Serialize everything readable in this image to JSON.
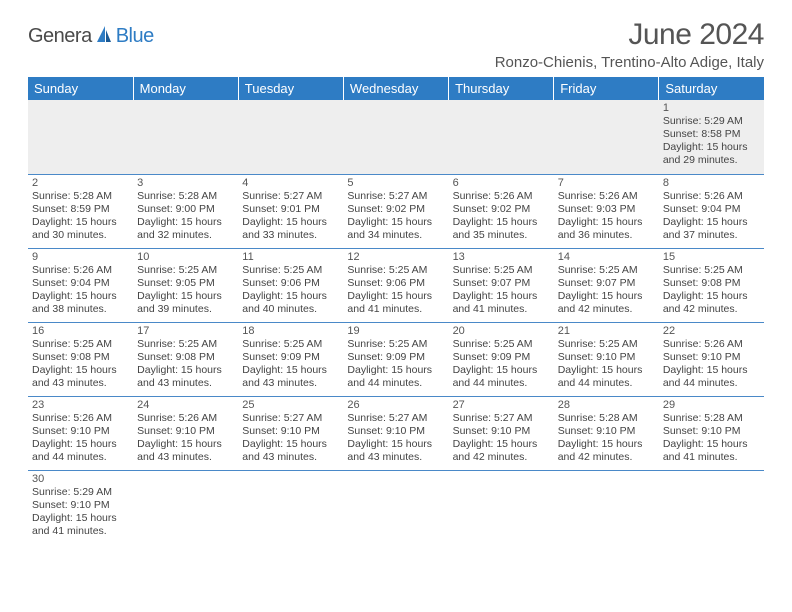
{
  "brand": {
    "part1": "Genera",
    "part2": "Blue"
  },
  "title": "June 2024",
  "location": "Ronzo-Chienis, Trentino-Alto Adige, Italy",
  "colors": {
    "header_bg": "#2e7cc4",
    "header_text": "#ffffff",
    "row_border": "#4a89c8",
    "first_row_bg": "#eeeeee",
    "text_primary": "#444444",
    "text_secondary": "#555555",
    "brand_blue": "#2e7cc4",
    "brand_gray": "#4a4a4a"
  },
  "typography": {
    "title_fontsize": 30,
    "location_fontsize": 15,
    "header_fontsize": 13,
    "daynum_fontsize": 11,
    "body_fontsize": 10.5
  },
  "weekdays": [
    "Sunday",
    "Monday",
    "Tuesday",
    "Wednesday",
    "Thursday",
    "Friday",
    "Saturday"
  ],
  "weeks": [
    [
      null,
      null,
      null,
      null,
      null,
      null,
      {
        "n": "1",
        "sunrise": "Sunrise: 5:29 AM",
        "sunset": "Sunset: 8:58 PM",
        "daylight1": "Daylight: 15 hours",
        "daylight2": "and 29 minutes."
      }
    ],
    [
      {
        "n": "2",
        "sunrise": "Sunrise: 5:28 AM",
        "sunset": "Sunset: 8:59 PM",
        "daylight1": "Daylight: 15 hours",
        "daylight2": "and 30 minutes."
      },
      {
        "n": "3",
        "sunrise": "Sunrise: 5:28 AM",
        "sunset": "Sunset: 9:00 PM",
        "daylight1": "Daylight: 15 hours",
        "daylight2": "and 32 minutes."
      },
      {
        "n": "4",
        "sunrise": "Sunrise: 5:27 AM",
        "sunset": "Sunset: 9:01 PM",
        "daylight1": "Daylight: 15 hours",
        "daylight2": "and 33 minutes."
      },
      {
        "n": "5",
        "sunrise": "Sunrise: 5:27 AM",
        "sunset": "Sunset: 9:02 PM",
        "daylight1": "Daylight: 15 hours",
        "daylight2": "and 34 minutes."
      },
      {
        "n": "6",
        "sunrise": "Sunrise: 5:26 AM",
        "sunset": "Sunset: 9:02 PM",
        "daylight1": "Daylight: 15 hours",
        "daylight2": "and 35 minutes."
      },
      {
        "n": "7",
        "sunrise": "Sunrise: 5:26 AM",
        "sunset": "Sunset: 9:03 PM",
        "daylight1": "Daylight: 15 hours",
        "daylight2": "and 36 minutes."
      },
      {
        "n": "8",
        "sunrise": "Sunrise: 5:26 AM",
        "sunset": "Sunset: 9:04 PM",
        "daylight1": "Daylight: 15 hours",
        "daylight2": "and 37 minutes."
      }
    ],
    [
      {
        "n": "9",
        "sunrise": "Sunrise: 5:26 AM",
        "sunset": "Sunset: 9:04 PM",
        "daylight1": "Daylight: 15 hours",
        "daylight2": "and 38 minutes."
      },
      {
        "n": "10",
        "sunrise": "Sunrise: 5:25 AM",
        "sunset": "Sunset: 9:05 PM",
        "daylight1": "Daylight: 15 hours",
        "daylight2": "and 39 minutes."
      },
      {
        "n": "11",
        "sunrise": "Sunrise: 5:25 AM",
        "sunset": "Sunset: 9:06 PM",
        "daylight1": "Daylight: 15 hours",
        "daylight2": "and 40 minutes."
      },
      {
        "n": "12",
        "sunrise": "Sunrise: 5:25 AM",
        "sunset": "Sunset: 9:06 PM",
        "daylight1": "Daylight: 15 hours",
        "daylight2": "and 41 minutes."
      },
      {
        "n": "13",
        "sunrise": "Sunrise: 5:25 AM",
        "sunset": "Sunset: 9:07 PM",
        "daylight1": "Daylight: 15 hours",
        "daylight2": "and 41 minutes."
      },
      {
        "n": "14",
        "sunrise": "Sunrise: 5:25 AM",
        "sunset": "Sunset: 9:07 PM",
        "daylight1": "Daylight: 15 hours",
        "daylight2": "and 42 minutes."
      },
      {
        "n": "15",
        "sunrise": "Sunrise: 5:25 AM",
        "sunset": "Sunset: 9:08 PM",
        "daylight1": "Daylight: 15 hours",
        "daylight2": "and 42 minutes."
      }
    ],
    [
      {
        "n": "16",
        "sunrise": "Sunrise: 5:25 AM",
        "sunset": "Sunset: 9:08 PM",
        "daylight1": "Daylight: 15 hours",
        "daylight2": "and 43 minutes."
      },
      {
        "n": "17",
        "sunrise": "Sunrise: 5:25 AM",
        "sunset": "Sunset: 9:08 PM",
        "daylight1": "Daylight: 15 hours",
        "daylight2": "and 43 minutes."
      },
      {
        "n": "18",
        "sunrise": "Sunrise: 5:25 AM",
        "sunset": "Sunset: 9:09 PM",
        "daylight1": "Daylight: 15 hours",
        "daylight2": "and 43 minutes."
      },
      {
        "n": "19",
        "sunrise": "Sunrise: 5:25 AM",
        "sunset": "Sunset: 9:09 PM",
        "daylight1": "Daylight: 15 hours",
        "daylight2": "and 44 minutes."
      },
      {
        "n": "20",
        "sunrise": "Sunrise: 5:25 AM",
        "sunset": "Sunset: 9:09 PM",
        "daylight1": "Daylight: 15 hours",
        "daylight2": "and 44 minutes."
      },
      {
        "n": "21",
        "sunrise": "Sunrise: 5:25 AM",
        "sunset": "Sunset: 9:10 PM",
        "daylight1": "Daylight: 15 hours",
        "daylight2": "and 44 minutes."
      },
      {
        "n": "22",
        "sunrise": "Sunrise: 5:26 AM",
        "sunset": "Sunset: 9:10 PM",
        "daylight1": "Daylight: 15 hours",
        "daylight2": "and 44 minutes."
      }
    ],
    [
      {
        "n": "23",
        "sunrise": "Sunrise: 5:26 AM",
        "sunset": "Sunset: 9:10 PM",
        "daylight1": "Daylight: 15 hours",
        "daylight2": "and 44 minutes."
      },
      {
        "n": "24",
        "sunrise": "Sunrise: 5:26 AM",
        "sunset": "Sunset: 9:10 PM",
        "daylight1": "Daylight: 15 hours",
        "daylight2": "and 43 minutes."
      },
      {
        "n": "25",
        "sunrise": "Sunrise: 5:27 AM",
        "sunset": "Sunset: 9:10 PM",
        "daylight1": "Daylight: 15 hours",
        "daylight2": "and 43 minutes."
      },
      {
        "n": "26",
        "sunrise": "Sunrise: 5:27 AM",
        "sunset": "Sunset: 9:10 PM",
        "daylight1": "Daylight: 15 hours",
        "daylight2": "and 43 minutes."
      },
      {
        "n": "27",
        "sunrise": "Sunrise: 5:27 AM",
        "sunset": "Sunset: 9:10 PM",
        "daylight1": "Daylight: 15 hours",
        "daylight2": "and 42 minutes."
      },
      {
        "n": "28",
        "sunrise": "Sunrise: 5:28 AM",
        "sunset": "Sunset: 9:10 PM",
        "daylight1": "Daylight: 15 hours",
        "daylight2": "and 42 minutes."
      },
      {
        "n": "29",
        "sunrise": "Sunrise: 5:28 AM",
        "sunset": "Sunset: 9:10 PM",
        "daylight1": "Daylight: 15 hours",
        "daylight2": "and 41 minutes."
      }
    ],
    [
      {
        "n": "30",
        "sunrise": "Sunrise: 5:29 AM",
        "sunset": "Sunset: 9:10 PM",
        "daylight1": "Daylight: 15 hours",
        "daylight2": "and 41 minutes."
      },
      null,
      null,
      null,
      null,
      null,
      null
    ]
  ]
}
